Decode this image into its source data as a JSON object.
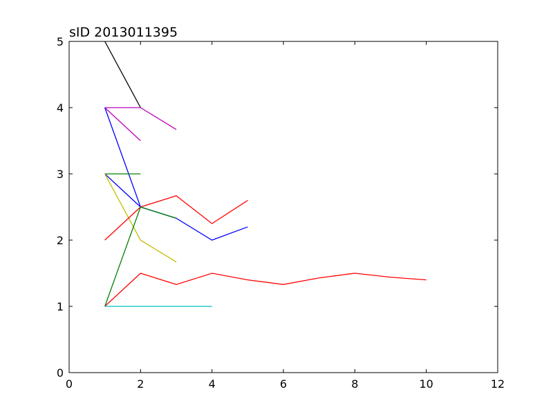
{
  "chart_data": {
    "type": "line",
    "title": "sID 2013011395",
    "xlabel": "",
    "ylabel": "",
    "xlim": [
      0,
      12
    ],
    "ylim": [
      0,
      5
    ],
    "xticks": [
      0,
      2,
      4,
      6,
      8,
      10,
      12
    ],
    "yticks": [
      0,
      1,
      2,
      3,
      4,
      5
    ],
    "grid": false,
    "series": [
      {
        "color": "#000000",
        "x": [
          1,
          2
        ],
        "y": [
          5,
          4
        ]
      },
      {
        "color": "#bf00bf",
        "x": [
          1,
          2,
          3
        ],
        "y": [
          4,
          4,
          3.67
        ]
      },
      {
        "color": "#bf00bf",
        "x": [
          1,
          2
        ],
        "y": [
          4,
          3.5
        ]
      },
      {
        "color": "#0000ff",
        "x": [
          1,
          2
        ],
        "y": [
          4,
          2.5
        ]
      },
      {
        "color": "#008000",
        "x": [
          1,
          2
        ],
        "y": [
          3,
          3
        ]
      },
      {
        "color": "#0000ff",
        "x": [
          1,
          2,
          3,
          4,
          5
        ],
        "y": [
          3,
          2.5,
          2.33,
          2.0,
          2.2
        ]
      },
      {
        "color": "#bfbf00",
        "x": [
          1,
          2,
          3
        ],
        "y": [
          3,
          2,
          1.67
        ]
      },
      {
        "color": "#ff0000",
        "x": [
          1,
          2,
          3,
          4,
          5
        ],
        "y": [
          2,
          2.5,
          2.67,
          2.25,
          2.6
        ]
      },
      {
        "color": "#008000",
        "x": [
          1,
          2,
          3
        ],
        "y": [
          1,
          2.5,
          2.33
        ]
      },
      {
        "color": "#ff0000",
        "x": [
          1,
          2,
          3,
          4,
          5,
          6,
          7,
          8,
          9,
          10
        ],
        "y": [
          1,
          1.5,
          1.33,
          1.5,
          1.4,
          1.33,
          1.43,
          1.5,
          1.44,
          1.4
        ]
      },
      {
        "color": "#00bfbf",
        "x": [
          1,
          2,
          3,
          4
        ],
        "y": [
          1,
          1,
          1,
          1
        ]
      }
    ]
  }
}
